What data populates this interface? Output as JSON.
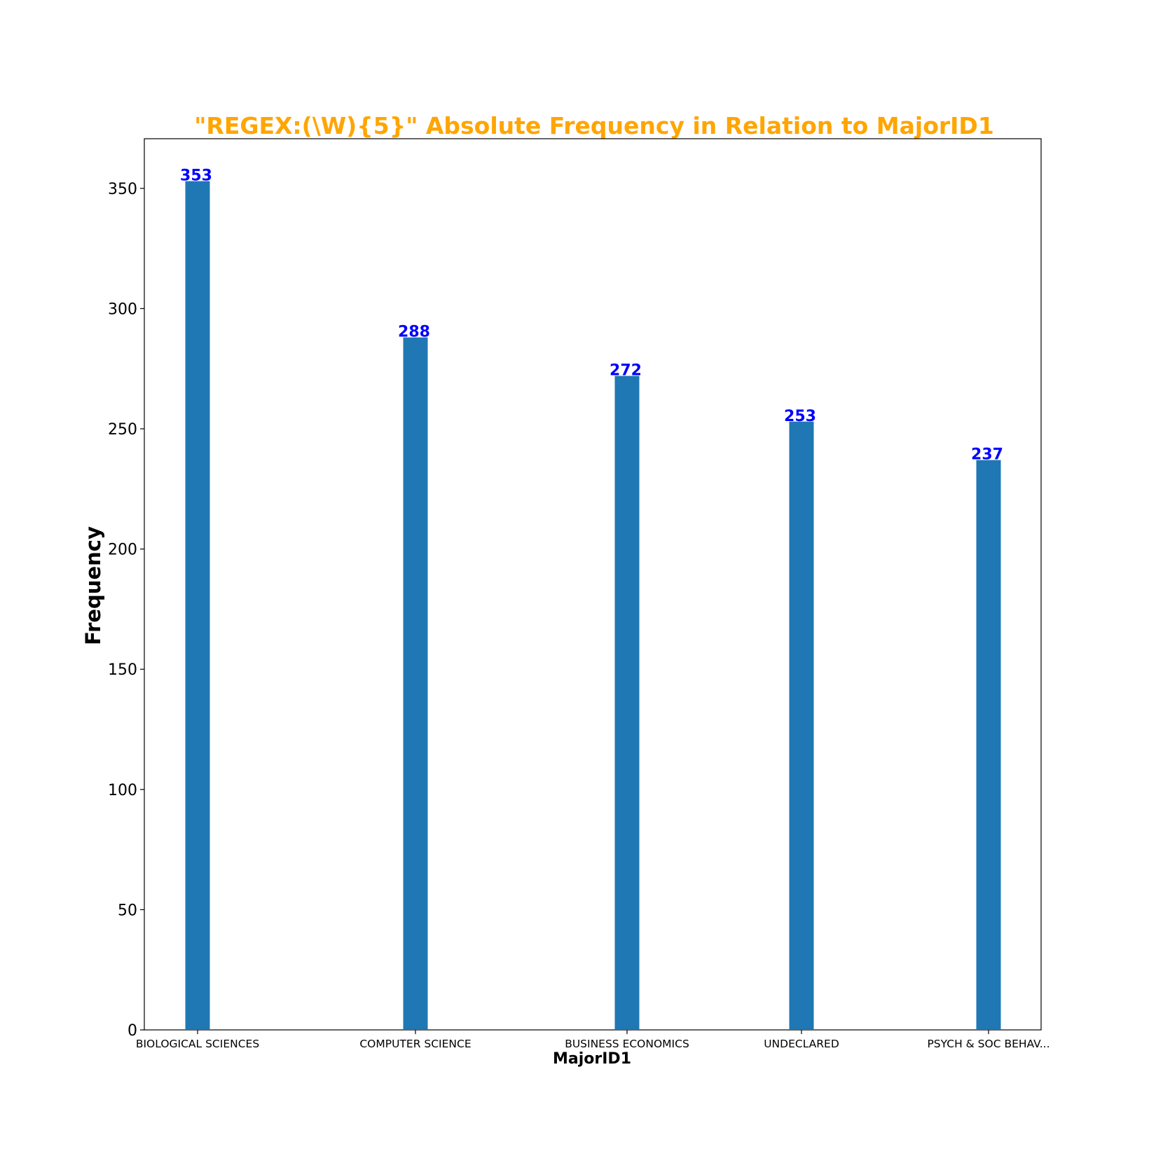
{
  "chart_data": {
    "type": "bar",
    "title": "\"REGEX:(\\W){5}\" Absolute Frequency in Relation to MajorID1",
    "xlabel": "MajorID1",
    "ylabel": "Frequency",
    "categories": [
      "BIOLOGICAL SCIENCES",
      "COMPUTER SCIENCE",
      "BUSINESS ECONOMICS",
      "UNDECLARED",
      "PSYCH & SOC BEHAV..."
    ],
    "values": [
      353,
      288,
      272,
      253,
      237
    ],
    "data_labels": [
      "353",
      "288",
      "272",
      "253",
      "237"
    ],
    "yticks": [
      0,
      50,
      100,
      150,
      200,
      250,
      300,
      350
    ],
    "ylim": [
      0,
      370.65
    ],
    "grid": false,
    "legend": "none",
    "colors": {
      "bar": "#1f77b4",
      "title": "#ffa500",
      "data_label": "#0000ff",
      "axis": "#000000"
    }
  }
}
